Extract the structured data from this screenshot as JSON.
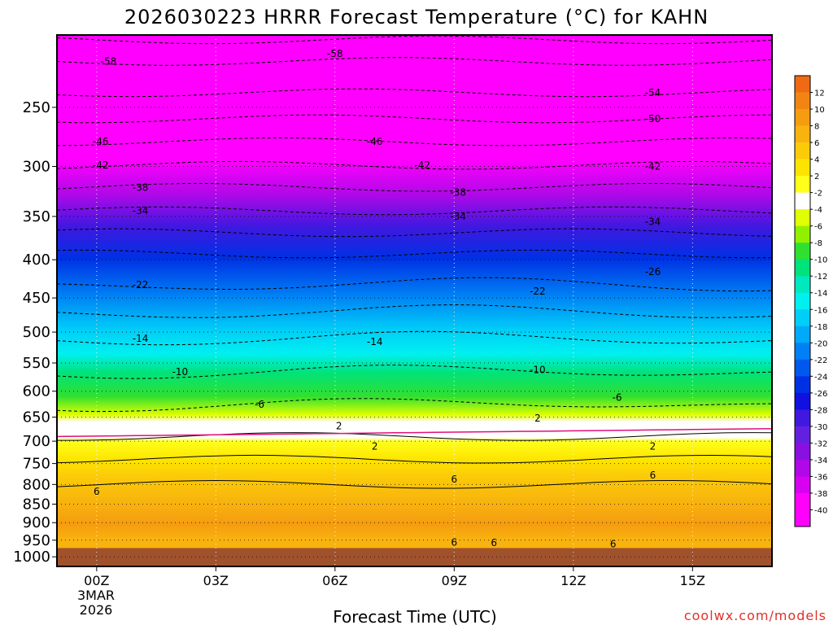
{
  "chart_data": {
    "type": "heatmap",
    "title": "2026030223 HRRR Forecast Temperature (°C) for KAHN",
    "xlabel": "Forecast Time (UTC)",
    "credit": "coolwx.com/models",
    "x_ticks": [
      "00Z",
      "03Z",
      "06Z",
      "09Z",
      "12Z",
      "15Z"
    ],
    "x_tick_hours": [
      0,
      3,
      6,
      9,
      12,
      15
    ],
    "x_date_lines": [
      "3MAR",
      "2026"
    ],
    "x_range_hours": [
      -1,
      17
    ],
    "y_axis": "pressure (hPa, log scale, inverted)",
    "y_ticks": [
      250,
      300,
      350,
      400,
      450,
      500,
      550,
      600,
      650,
      700,
      750,
      800,
      850,
      900,
      950,
      1000
    ],
    "y_range": [
      200,
      1030
    ],
    "colorbar_levels": [
      12,
      10,
      8,
      6,
      4,
      2,
      -2,
      -4,
      -6,
      -8,
      -10,
      -12,
      -14,
      -16,
      -18,
      -20,
      -22,
      -24,
      -26,
      -28,
      -30,
      -32,
      -34,
      -36,
      -38,
      -40
    ],
    "colorbar_colors": [
      "#f06a14",
      "#f28512",
      "#f59c10",
      "#f8b30e",
      "#fbcb08",
      "#fde400",
      "#ffff1a",
      "#ffffff",
      "#e0ff00",
      "#90f000",
      "#30e030",
      "#00e27a",
      "#00e8be",
      "#00f0f0",
      "#00cef8",
      "#00aaf8",
      "#0080f4",
      "#0058ec",
      "#0030e4",
      "#1010e0",
      "#4018e0",
      "#6420e0",
      "#8a10e0",
      "#b008e8",
      "#d800f0",
      "#ff00f8",
      "#ff00ff"
    ],
    "contour_labels": [
      {
        "text": "-58",
        "h": 0.3,
        "p": 217
      },
      {
        "text": "-58",
        "h": 6.0,
        "p": 212
      },
      {
        "text": "-54",
        "h": 14.0,
        "p": 239
      },
      {
        "text": "-50",
        "h": 14.0,
        "p": 259
      },
      {
        "text": "-46",
        "h": 0.1,
        "p": 278
      },
      {
        "text": "-46",
        "h": 7.0,
        "p": 278
      },
      {
        "text": "-42",
        "h": 0.1,
        "p": 299
      },
      {
        "text": "-42",
        "h": 8.2,
        "p": 299
      },
      {
        "text": "-42",
        "h": 14.0,
        "p": 300
      },
      {
        "text": "-38",
        "h": 1.1,
        "p": 320
      },
      {
        "text": "-38",
        "h": 9.1,
        "p": 325
      },
      {
        "text": "-34",
        "h": 1.1,
        "p": 344
      },
      {
        "text": "-34",
        "h": 9.1,
        "p": 350
      },
      {
        "text": "-34",
        "h": 14.0,
        "p": 356
      },
      {
        "text": "-26",
        "h": 14.0,
        "p": 415
      },
      {
        "text": "-22",
        "h": 1.1,
        "p": 432
      },
      {
        "text": "-22",
        "h": 11.1,
        "p": 441
      },
      {
        "text": "-14",
        "h": 1.1,
        "p": 510
      },
      {
        "text": "-14",
        "h": 7.0,
        "p": 515
      },
      {
        "text": "-10",
        "h": 2.1,
        "p": 565
      },
      {
        "text": "-10",
        "h": 11.1,
        "p": 562
      },
      {
        "text": "-6",
        "h": 4.1,
        "p": 625
      },
      {
        "text": "-6",
        "h": 13.1,
        "p": 612
      },
      {
        "text": "2",
        "h": 6.1,
        "p": 668
      },
      {
        "text": "2",
        "h": 11.1,
        "p": 652
      },
      {
        "text": "2",
        "h": 7.0,
        "p": 711
      },
      {
        "text": "2",
        "h": 14.0,
        "p": 711
      },
      {
        "text": "6",
        "h": 0,
        "p": 818
      },
      {
        "text": "6",
        "h": 9.0,
        "p": 787
      },
      {
        "text": "6",
        "h": 14.0,
        "p": 778
      },
      {
        "text": "6",
        "h": 9.0,
        "p": 956
      },
      {
        "text": "6",
        "h": 10.0,
        "p": 958
      },
      {
        "text": "6",
        "h": 13.0,
        "p": 961
      }
    ]
  }
}
